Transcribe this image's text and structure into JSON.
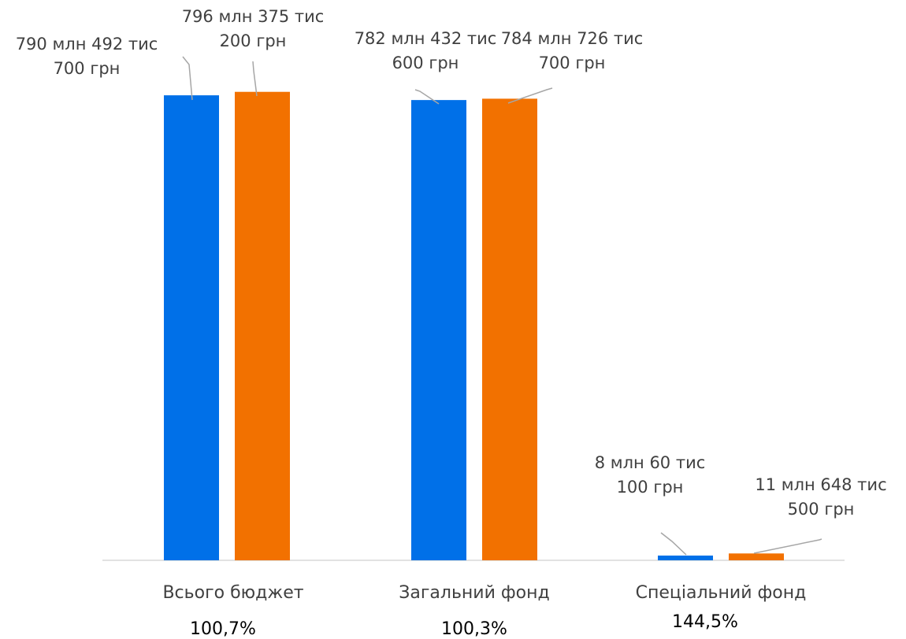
{
  "chart_data": {
    "type": "bar",
    "categories": [
      "Всього бюджет",
      "Загальний фонд",
      "Спеціальний фонд"
    ],
    "percentages": [
      "100,7%",
      "100,3%",
      "144,5%"
    ],
    "series": [
      {
        "color": "#0070e8",
        "values": [
          790492700,
          782432600,
          8060100
        ],
        "labels": [
          [
            "790 млн 492 тис",
            "700 грн"
          ],
          [
            "782 млн 432 тис",
            "600 грн"
          ],
          [
            "8 млн 60 тис",
            "100 грн"
          ]
        ]
      },
      {
        "color": "#f27100",
        "values": [
          796375200,
          784726700,
          11648500
        ],
        "labels": [
          [
            "796 млн 375 тис",
            "200 грн"
          ],
          [
            "784 млн 726 тис",
            "700 грн"
          ],
          [
            "11 млн 648 тис",
            "500 грн"
          ]
        ]
      }
    ],
    "ylim": [
      0,
      800000000
    ],
    "grid": false,
    "legend": "none"
  }
}
